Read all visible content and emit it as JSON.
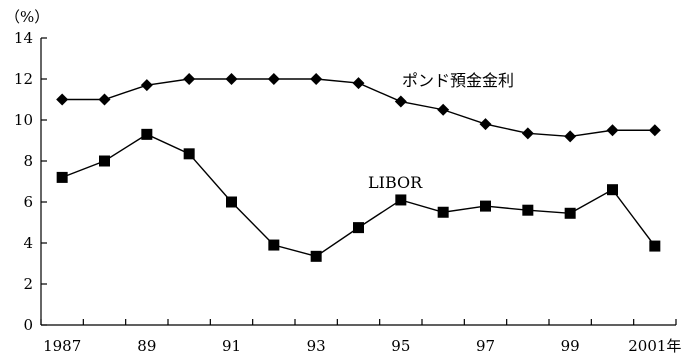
{
  "chart_data": {
    "type": "line",
    "ylabel": "（%）",
    "ylim": [
      0,
      14
    ],
    "yticks": [
      0,
      2,
      4,
      6,
      8,
      10,
      12,
      14
    ],
    "x": [
      1987,
      1988,
      1989,
      1990,
      1991,
      1992,
      1993,
      1994,
      1995,
      1996,
      1997,
      1998,
      1999,
      2000,
      2001
    ],
    "xtick_labels": [
      {
        "x": 1987,
        "label": "1987"
      },
      {
        "x": 1989,
        "label": "89"
      },
      {
        "x": 1991,
        "label": "91"
      },
      {
        "x": 1993,
        "label": "93"
      },
      {
        "x": 1995,
        "label": "95"
      },
      {
        "x": 1997,
        "label": "97"
      },
      {
        "x": 1999,
        "label": "99"
      },
      {
        "x": 2001,
        "label": "2001年"
      }
    ],
    "grid": false,
    "legend": "none",
    "series": [
      {
        "name": "ポンド預金金利",
        "marker": "diamond",
        "values": [
          11.0,
          11.0,
          11.7,
          12.0,
          12.0,
          12.0,
          12.0,
          11.8,
          10.9,
          10.5,
          9.8,
          9.35,
          9.2,
          9.5,
          9.5
        ]
      },
      {
        "name": "LIBOR",
        "marker": "square",
        "values": [
          7.2,
          8.0,
          9.3,
          8.35,
          6.0,
          3.9,
          3.35,
          4.75,
          6.1,
          5.5,
          5.8,
          5.6,
          5.45,
          6.6,
          3.85
        ]
      }
    ]
  }
}
